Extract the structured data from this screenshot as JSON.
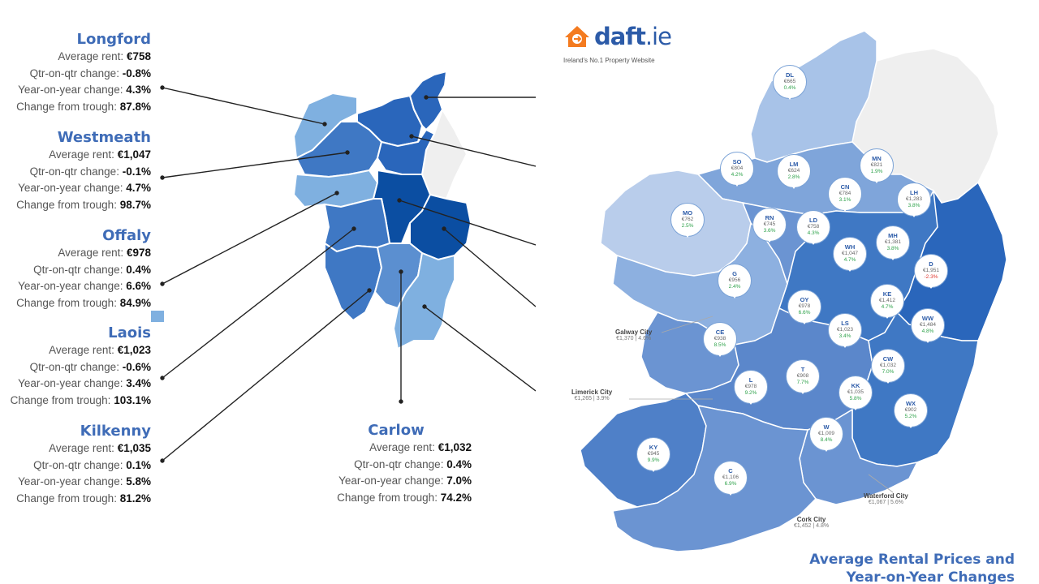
{
  "left_counties": [
    {
      "name": "Longford",
      "average_rent_label": "Average rent:",
      "average_rent": "€758",
      "qtr_label": "Qtr-on-qtr change:",
      "qtr": "-0.8%",
      "yoy_label": "Year-on-year change:",
      "yoy": "4.3%",
      "trough_label": "Change from trough:",
      "trough": "87.8%"
    },
    {
      "name": "Westmeath",
      "average_rent_label": "Average rent:",
      "average_rent": "€1,047",
      "qtr_label": "Qtr-on-qtr change:",
      "qtr": "-0.1%",
      "yoy_label": "Year-on-year change:",
      "yoy": "4.7%",
      "trough_label": "Change from trough:",
      "trough": "98.7%"
    },
    {
      "name": "Offaly",
      "average_rent_label": "Average rent:",
      "average_rent": "€978",
      "qtr_label": "Qtr-on-qtr change:",
      "qtr": "0.4%",
      "yoy_label": "Year-on-year change:",
      "yoy": "6.6%",
      "trough_label": "Change from trough:",
      "trough": "84.9%"
    },
    {
      "name": "Laois",
      "average_rent_label": "Average rent:",
      "average_rent": "€1,023",
      "qtr_label": "Qtr-on-qtr change:",
      "qtr": "-0.6%",
      "yoy_label": "Year-on-year change:",
      "yoy": "3.4%",
      "trough_label": "Change from trough:",
      "trough": "103.1%"
    },
    {
      "name": "Kilkenny",
      "average_rent_label": "Average rent:",
      "average_rent": "€1,035",
      "qtr_label": "Qtr-on-qtr change:",
      "qtr": "0.1%",
      "yoy_label": "Year-on-year change:",
      "yoy": "5.8%",
      "trough_label": "Change from trough:",
      "trough": "81.2%"
    }
  ],
  "carlow": {
    "name": "Carlow",
    "average_rent_label": "Average rent:",
    "average_rent": "€1,032",
    "qtr_label": "Qtr-on-qtr change:",
    "qtr": "0.4%",
    "yoy_label": "Year-on-year change:",
    "yoy": "7.0%",
    "trough_label": "Change from trough:",
    "trough": "74.2%"
  },
  "logo": {
    "word": "daft",
    "suffix": ".ie",
    "tagline": "Ireland's No.1 Property Website",
    "color": "#2c5ba8",
    "accent": "#f47b20"
  },
  "pins": [
    {
      "code": "DL",
      "rent": "€665",
      "change": "0.4%",
      "negative": false
    },
    {
      "code": "SO",
      "rent": "€804",
      "change": "4.2%",
      "negative": false
    },
    {
      "code": "LM",
      "rent": "€624",
      "change": "2.8%",
      "negative": false
    },
    {
      "code": "MN",
      "rent": "€821",
      "change": "1.9%",
      "negative": false
    },
    {
      "code": "CN",
      "rent": "€784",
      "change": "3.1%",
      "negative": false
    },
    {
      "code": "LH",
      "rent": "€1,283",
      "change": "3.8%",
      "negative": false
    },
    {
      "code": "MO",
      "rent": "€762",
      "change": "2.5%",
      "negative": false
    },
    {
      "code": "RN",
      "rent": "€745",
      "change": "3.6%",
      "negative": false
    },
    {
      "code": "LD",
      "rent": "€758",
      "change": "4.3%",
      "negative": false
    },
    {
      "code": "MH",
      "rent": "€1,381",
      "change": "3.8%",
      "negative": false
    },
    {
      "code": "WH",
      "rent": "€1,047",
      "change": "4.7%",
      "negative": false
    },
    {
      "code": "D",
      "rent": "€1,951",
      "change": "-2.3%",
      "negative": true
    },
    {
      "code": "G",
      "rent": "€956",
      "change": "2.4%",
      "negative": false
    },
    {
      "code": "OY",
      "rent": "€978",
      "change": "6.6%",
      "negative": false
    },
    {
      "code": "KE",
      "rent": "€1,412",
      "change": "4.7%",
      "negative": false
    },
    {
      "code": "WW",
      "rent": "€1,484",
      "change": "4.8%",
      "negative": false
    },
    {
      "code": "CE",
      "rent": "€938",
      "change": "8.5%",
      "negative": false
    },
    {
      "code": "LS",
      "rent": "€1,023",
      "change": "3.4%",
      "negative": false
    },
    {
      "code": "CW",
      "rent": "€1,032",
      "change": "7.0%",
      "negative": false
    },
    {
      "code": "T",
      "rent": "€908",
      "change": "7.7%",
      "negative": false
    },
    {
      "code": "L",
      "rent": "€978",
      "change": "9.2%",
      "negative": false
    },
    {
      "code": "KK",
      "rent": "€1,035",
      "change": "5.8%",
      "negative": false
    },
    {
      "code": "WX",
      "rent": "€902",
      "change": "5.2%",
      "negative": false
    },
    {
      "code": "W",
      "rent": "€1,009",
      "change": "8.4%",
      "negative": false
    },
    {
      "code": "KY",
      "rent": "€945",
      "change": "9.9%",
      "negative": false
    },
    {
      "code": "C",
      "rent": "€1,106",
      "change": "6.9%",
      "negative": false
    }
  ],
  "cities": [
    {
      "name": "Galway City",
      "value": "€1,370 | 4.6%"
    },
    {
      "name": "Limerick City",
      "value": "€1,265 | 3.9%"
    },
    {
      "name": "Waterford City",
      "value": "€1,067 | 5.6%"
    },
    {
      "name": "Cork City",
      "value": "€1,452 | 4.8%"
    }
  ],
  "title": {
    "line1": "Average Rental Prices and",
    "line2": "Year-on-Year Changes"
  },
  "colors": {
    "darkest": "#0b4ea2",
    "dark": "#2a66bb",
    "medium": "#3f78c4",
    "mediumlight": "#5b8fd0",
    "light": "#7fb0e0",
    "pale": "#a8c3e8",
    "northern_ireland": "#efefef",
    "label_blue": "#3f6cb7",
    "positive": "#2ea24a",
    "negative": "#e0342c"
  }
}
